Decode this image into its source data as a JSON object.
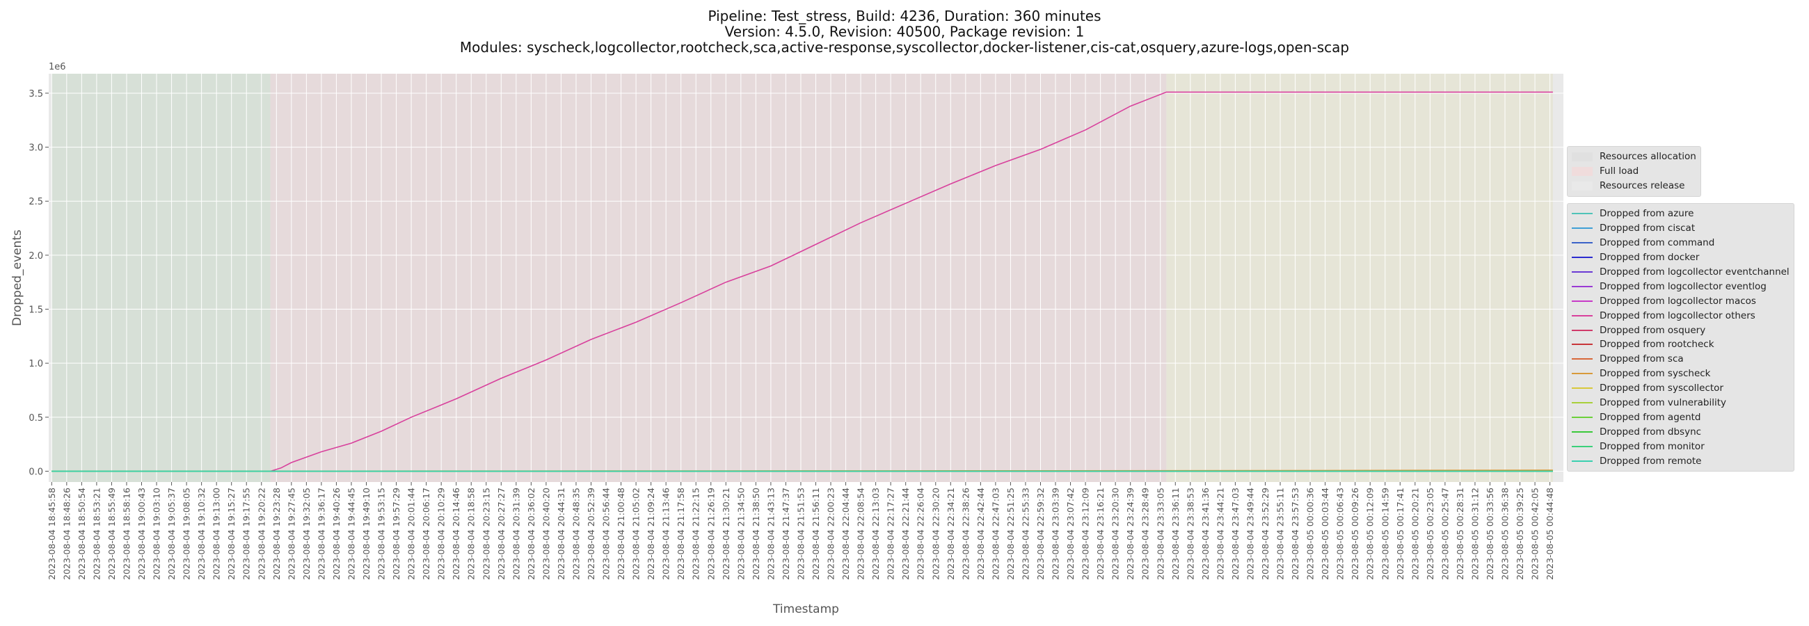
{
  "chart_data": {
    "type": "line",
    "title_lines": [
      "Pipeline: Test_stress, Build: 4236, Duration: 360 minutes",
      "Version: 4.5.0, Revision: 40500, Package revision: 1",
      "Modules: syscheck,logcollector,rootcheck,sca,active-response,syscollector,docker-listener,cis-cat,osquery,azure-logs,open-scap"
    ],
    "xlabel": "Timestamp",
    "ylabel": "Dropped_events",
    "y_scale_label": "1e6",
    "ylim": [
      -0.1,
      3.68
    ],
    "y_ticks": [
      0.0,
      0.5,
      1.0,
      1.5,
      2.0,
      2.5,
      3.0,
      3.5
    ],
    "y_tick_labels": [
      "0.0",
      "0.5",
      "1.0",
      "1.5",
      "2.0",
      "2.5",
      "3.0",
      "3.5"
    ],
    "x_tick_labels": [
      "2023-08-04 18:45:58",
      "2023-08-04 18:48:26",
      "2023-08-04 18:50:54",
      "2023-08-04 18:53:21",
      "2023-08-04 18:55:49",
      "2023-08-04 18:58:16",
      "2023-08-04 19:00:43",
      "2023-08-04 19:03:10",
      "2023-08-04 19:05:37",
      "2023-08-04 19:08:05",
      "2023-08-04 19:10:32",
      "2023-08-04 19:13:00",
      "2023-08-04 19:15:27",
      "2023-08-04 19:17:55",
      "2023-08-04 19:20:22",
      "2023-08-04 19:23:28",
      "2023-08-04 19:27:45",
      "2023-08-04 19:32:05",
      "2023-08-04 19:36:17",
      "2023-08-04 19:40:26",
      "2023-08-04 19:44:45",
      "2023-08-04 19:49:10",
      "2023-08-04 19:53:15",
      "2023-08-04 19:57:29",
      "2023-08-04 20:01:44",
      "2023-08-04 20:06:17",
      "2023-08-04 20:10:29",
      "2023-08-04 20:14:46",
      "2023-08-04 20:18:58",
      "2023-08-04 20:23:15",
      "2023-08-04 20:27:27",
      "2023-08-04 20:31:39",
      "2023-08-04 20:36:02",
      "2023-08-04 20:40:20",
      "2023-08-04 20:44:31",
      "2023-08-04 20:48:35",
      "2023-08-04 20:52:39",
      "2023-08-04 20:56:44",
      "2023-08-04 21:00:48",
      "2023-08-04 21:05:02",
      "2023-08-04 21:09:24",
      "2023-08-04 21:13:46",
      "2023-08-04 21:17:58",
      "2023-08-04 21:22:15",
      "2023-08-04 21:26:19",
      "2023-08-04 21:30:21",
      "2023-08-04 21:34:50",
      "2023-08-04 21:38:50",
      "2023-08-04 21:43:13",
      "2023-08-04 21:47:37",
      "2023-08-04 21:51:53",
      "2023-08-04 21:56:11",
      "2023-08-04 22:00:23",
      "2023-08-04 22:04:44",
      "2023-08-04 22:08:54",
      "2023-08-04 22:13:03",
      "2023-08-04 22:17:27",
      "2023-08-04 22:21:44",
      "2023-08-04 22:26:04",
      "2023-08-04 22:30:20",
      "2023-08-04 22:34:21",
      "2023-08-04 22:38:26",
      "2023-08-04 22:42:44",
      "2023-08-04 22:47:03",
      "2023-08-04 22:51:25",
      "2023-08-04 22:55:33",
      "2023-08-04 22:59:32",
      "2023-08-04 23:03:39",
      "2023-08-04 23:07:42",
      "2023-08-04 23:12:09",
      "2023-08-04 23:16:21",
      "2023-08-04 23:20:30",
      "2023-08-04 23:24:39",
      "2023-08-04 23:28:49",
      "2023-08-04 23:33:05",
      "2023-08-04 23:36:11",
      "2023-08-04 23:38:53",
      "2023-08-04 23:41:36",
      "2023-08-04 23:44:21",
      "2023-08-04 23:47:03",
      "2023-08-04 23:49:44",
      "2023-08-04 23:52:29",
      "2023-08-04 23:55:11",
      "2023-08-04 23:57:53",
      "2023-08-05 00:00:36",
      "2023-08-05 00:03:44",
      "2023-08-05 00:06:43",
      "2023-08-05 00:09:26",
      "2023-08-05 00:12:09",
      "2023-08-05 00:14:59",
      "2023-08-05 00:17:41",
      "2023-08-05 00:20:21",
      "2023-08-05 00:23:05",
      "2023-08-05 00:25:47",
      "2023-08-05 00:28:31",
      "2023-08-05 00:31:12",
      "2023-08-05 00:33:56",
      "2023-08-05 00:36:38",
      "2023-08-05 00:39:25",
      "2023-08-05 00:42:05",
      "2023-08-05 00:44:48"
    ],
    "phases": [
      {
        "name": "Resources allocation",
        "from_tick": 0,
        "to_tick": 14.6,
        "color": "#d7e0d7"
      },
      {
        "name": "Full load",
        "from_tick": 14.6,
        "to_tick": 74.4,
        "color": "#e6dadb"
      },
      {
        "name": "Resources release",
        "from_tick": 74.4,
        "to_tick": 100.2,
        "color": "#e6e5d7"
      }
    ],
    "legend_phase_colors": [
      "#e0e0e0",
      "#f0dcdc",
      "#e9e9e9"
    ],
    "grid": true,
    "legend_position": "right",
    "series": [
      {
        "name": "Dropped from azure",
        "color": "#4fc3b8",
        "points": [
          [
            0,
            0
          ],
          [
            100.2,
            0
          ]
        ]
      },
      {
        "name": "Dropped from ciscat",
        "color": "#3f9fd6",
        "points": [
          [
            0,
            0
          ],
          [
            100.2,
            0
          ]
        ]
      },
      {
        "name": "Dropped from command",
        "color": "#3a62c8",
        "points": [
          [
            0,
            0
          ],
          [
            100.2,
            0
          ]
        ]
      },
      {
        "name": "Dropped from docker",
        "color": "#2a2ad0",
        "points": [
          [
            0,
            0
          ],
          [
            100.2,
            0
          ]
        ]
      },
      {
        "name": "Dropped from logcollector eventchannel",
        "color": "#6a3ad4",
        "points": [
          [
            0,
            0
          ],
          [
            100.2,
            0
          ]
        ]
      },
      {
        "name": "Dropped from logcollector eventlog",
        "color": "#9a3ad4",
        "points": [
          [
            0,
            0
          ],
          [
            100.2,
            0
          ]
        ]
      },
      {
        "name": "Dropped from logcollector macos",
        "color": "#c83ac8",
        "points": [
          [
            0,
            0
          ],
          [
            100.2,
            0
          ]
        ]
      },
      {
        "name": "Dropped from logcollector others",
        "color": "#d8409c",
        "points": [
          [
            0,
            0
          ],
          [
            14.6,
            0
          ],
          [
            15.3,
            0.03
          ],
          [
            16,
            0.08
          ],
          [
            18,
            0.18
          ],
          [
            20,
            0.26
          ],
          [
            22,
            0.37
          ],
          [
            24,
            0.5
          ],
          [
            27,
            0.67
          ],
          [
            30,
            0.86
          ],
          [
            33,
            1.03
          ],
          [
            36,
            1.22
          ],
          [
            39,
            1.38
          ],
          [
            42,
            1.56
          ],
          [
            45,
            1.75
          ],
          [
            48,
            1.9
          ],
          [
            51,
            2.1
          ],
          [
            54,
            2.3
          ],
          [
            57,
            2.48
          ],
          [
            60,
            2.66
          ],
          [
            63,
            2.83
          ],
          [
            66,
            2.98
          ],
          [
            69,
            3.16
          ],
          [
            72,
            3.38
          ],
          [
            74.4,
            3.51
          ],
          [
            100.2,
            3.51
          ]
        ]
      },
      {
        "name": "Dropped from osquery",
        "color": "#d03a6a",
        "points": [
          [
            0,
            0
          ],
          [
            100.2,
            0
          ]
        ]
      },
      {
        "name": "Dropped from rootcheck",
        "color": "#c8363a",
        "points": [
          [
            0,
            0
          ],
          [
            100.2,
            0
          ]
        ]
      },
      {
        "name": "Dropped from sca",
        "color": "#d8683a",
        "points": [
          [
            0,
            0
          ],
          [
            100.2,
            0
          ]
        ]
      },
      {
        "name": "Dropped from syscheck",
        "color": "#d89a3a",
        "points": [
          [
            0,
            0
          ],
          [
            74.4,
            0.005
          ],
          [
            100.2,
            0.01
          ]
        ]
      },
      {
        "name": "Dropped from syscollector",
        "color": "#d8c83a",
        "points": [
          [
            0,
            0
          ],
          [
            100.2,
            0
          ]
        ]
      },
      {
        "name": "Dropped from vulnerability",
        "color": "#a8d03a",
        "points": [
          [
            0,
            0
          ],
          [
            100.2,
            0
          ]
        ]
      },
      {
        "name": "Dropped from agentd",
        "color": "#6cd03a",
        "points": [
          [
            0,
            0
          ],
          [
            100.2,
            0
          ]
        ]
      },
      {
        "name": "Dropped from dbsync",
        "color": "#3ac83a",
        "points": [
          [
            0,
            0
          ],
          [
            100.2,
            0
          ]
        ]
      },
      {
        "name": "Dropped from monitor",
        "color": "#3ad07a",
        "points": [
          [
            0,
            0
          ],
          [
            100.2,
            0
          ]
        ]
      },
      {
        "name": "Dropped from remote",
        "color": "#3ad0b0",
        "points": [
          [
            0,
            0
          ],
          [
            100.2,
            0
          ]
        ]
      }
    ]
  }
}
